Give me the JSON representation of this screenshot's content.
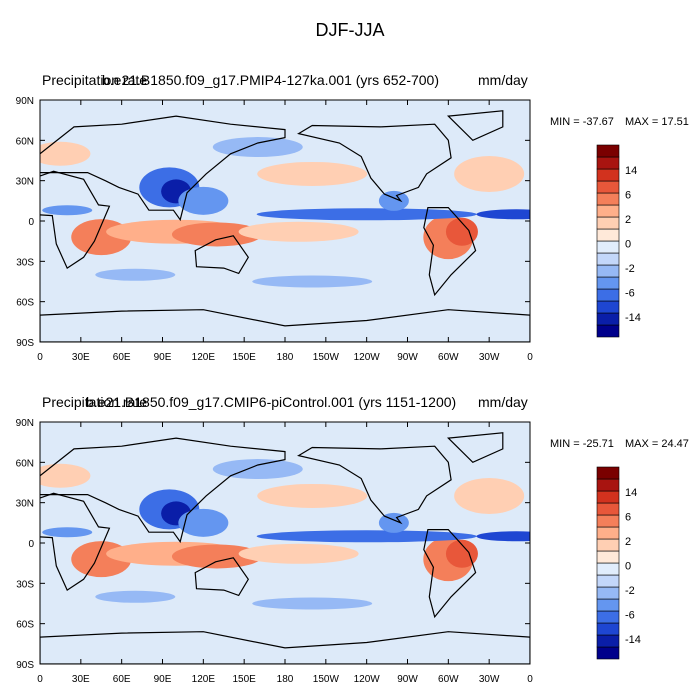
{
  "figure": {
    "title": "DJF-JJA"
  },
  "colors": {
    "scale": [
      "#00008b",
      "#0a1ea8",
      "#1e46d2",
      "#3c6ee6",
      "#6496f0",
      "#96b9f5",
      "#c3d7fa",
      "#e1edfc",
      "#ffe9d9",
      "#ffcfb3",
      "#ffaf8a",
      "#f47f5a",
      "#e8573a",
      "#d2321e",
      "#a81410",
      "#7a0000"
    ],
    "ocean": "#ddeaf9",
    "land_line": "#000000"
  },
  "chart_data": [
    {
      "type": "heatmap",
      "variable": "Precipitation rate",
      "case": "b.e21.B1850.f09_g17.PMIP4-127ka.001 (yrs 652-700)",
      "units": "mm/day",
      "min_label": "MIN = -37.67",
      "max_label": "MAX =  17.51",
      "x_ticks": [
        "0",
        "30E",
        "60E",
        "90E",
        "120E",
        "150E",
        "180",
        "150W",
        "120W",
        "90W",
        "60W",
        "30W",
        "0"
      ],
      "y_ticks": [
        "90N",
        "60N",
        "30N",
        "0",
        "30S",
        "60S",
        "90S"
      ],
      "colorbar_labels": [
        "14",
        "6",
        "2",
        "0",
        "-2",
        "-6",
        "-14"
      ],
      "xlim": [
        0,
        360
      ],
      "ylim": [
        -90,
        90
      ]
    },
    {
      "type": "heatmap",
      "variable": "Precipitation rate",
      "case": "b.e21.B1850.f09_g17.CMIP6-piControl.001 (yrs 1151-1200)",
      "units": "mm/day",
      "min_label": "MIN = -25.71",
      "max_label": "MAX =  24.47",
      "x_ticks": [
        "0",
        "30E",
        "60E",
        "90E",
        "120E",
        "150E",
        "180",
        "150W",
        "120W",
        "90W",
        "60W",
        "30W",
        "0"
      ],
      "y_ticks": [
        "90N",
        "60N",
        "30N",
        "0",
        "30S",
        "60S",
        "90S"
      ],
      "colorbar_labels": [
        "14",
        "6",
        "2",
        "0",
        "-2",
        "-6",
        "-14"
      ],
      "xlim": [
        0,
        360
      ],
      "ylim": [
        -90,
        90
      ]
    }
  ]
}
